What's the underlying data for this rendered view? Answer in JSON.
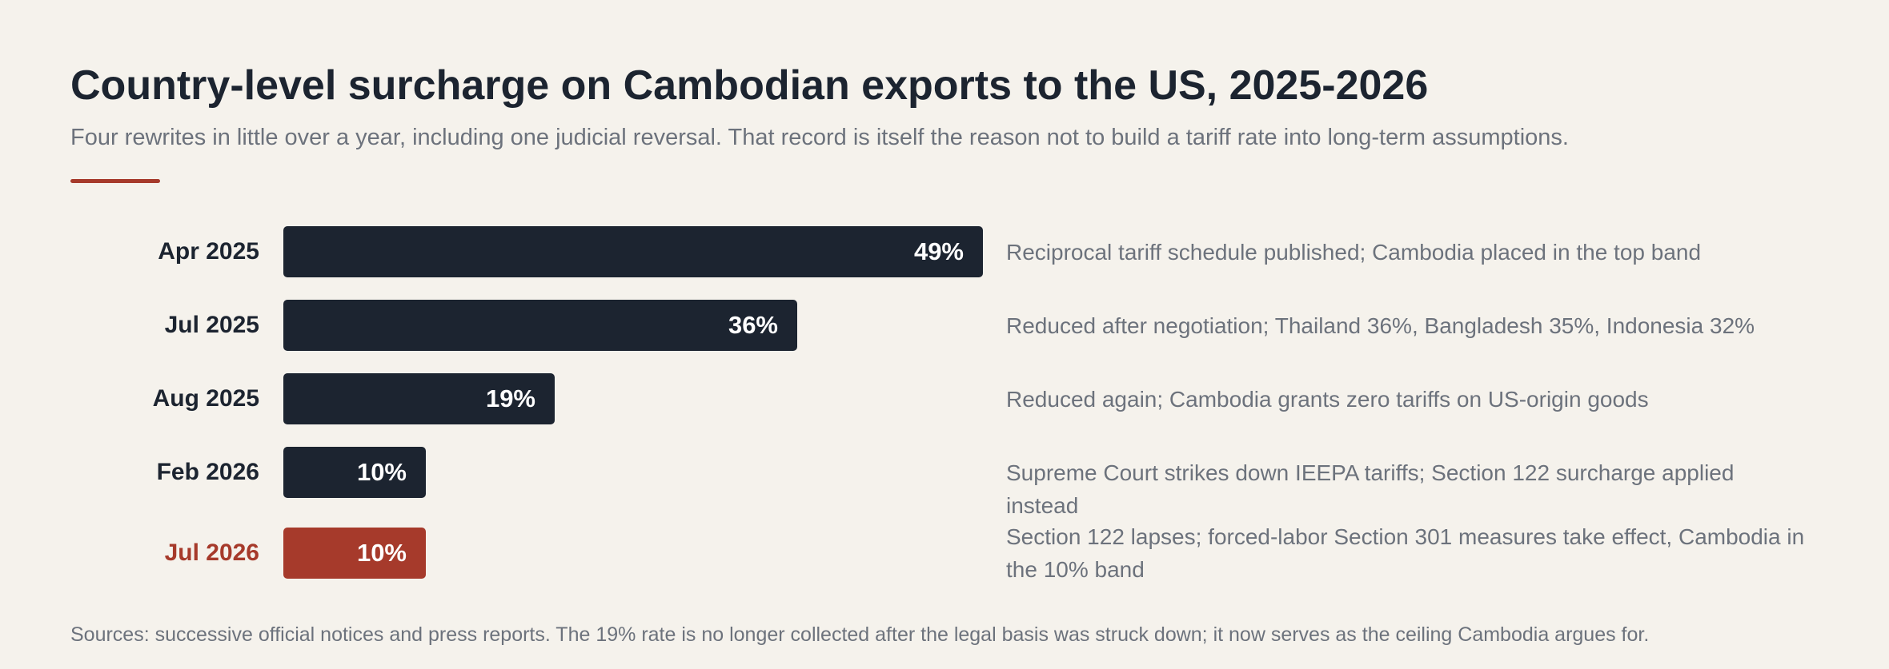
{
  "title": "Country-level surcharge on Cambodian exports to the US, 2025-2026",
  "subtitle": "Four rewrites in little over a year, including one judicial reversal. That record is itself the reason not to build a tariff rate into long-term assumptions.",
  "source": "Sources: successive official notices and press reports. The 19% rate is no longer collected after the legal basis was struck down; it now serves as the ceiling Cambodia argues for.",
  "colors": {
    "bar": "#1c2430",
    "highlight": "#a63a2b",
    "background": "#f5f2ec",
    "muted_text": "#6c727c"
  },
  "chart_data": {
    "type": "bar",
    "orientation": "horizontal",
    "title": "Country-level surcharge on Cambodian exports to the US, 2025-2026",
    "categories": [
      "Apr 2025",
      "Jul 2025",
      "Aug 2025",
      "Feb 2026",
      "Jul 2026"
    ],
    "values": [
      49,
      36,
      19,
      10,
      10
    ],
    "value_labels": [
      "49%",
      "36%",
      "19%",
      "10%",
      "10%"
    ],
    "unit": "%",
    "xlim": [
      0,
      49
    ],
    "highlighted_category": "Jul 2026",
    "annotations": [
      "Reciprocal tariff schedule published; Cambodia placed in the top band",
      "Reduced after negotiation; Thailand 36%, Bangladesh 35%, Indonesia 32%",
      "Reduced again; Cambodia grants zero tariffs on US-origin goods",
      "Supreme Court strikes down IEEPA tariffs; Section 122 surcharge applied instead",
      "Section 122 lapses; forced-labor Section 301 measures take effect, Cambodia in the 10% band"
    ],
    "grid": false,
    "legend": "none"
  }
}
